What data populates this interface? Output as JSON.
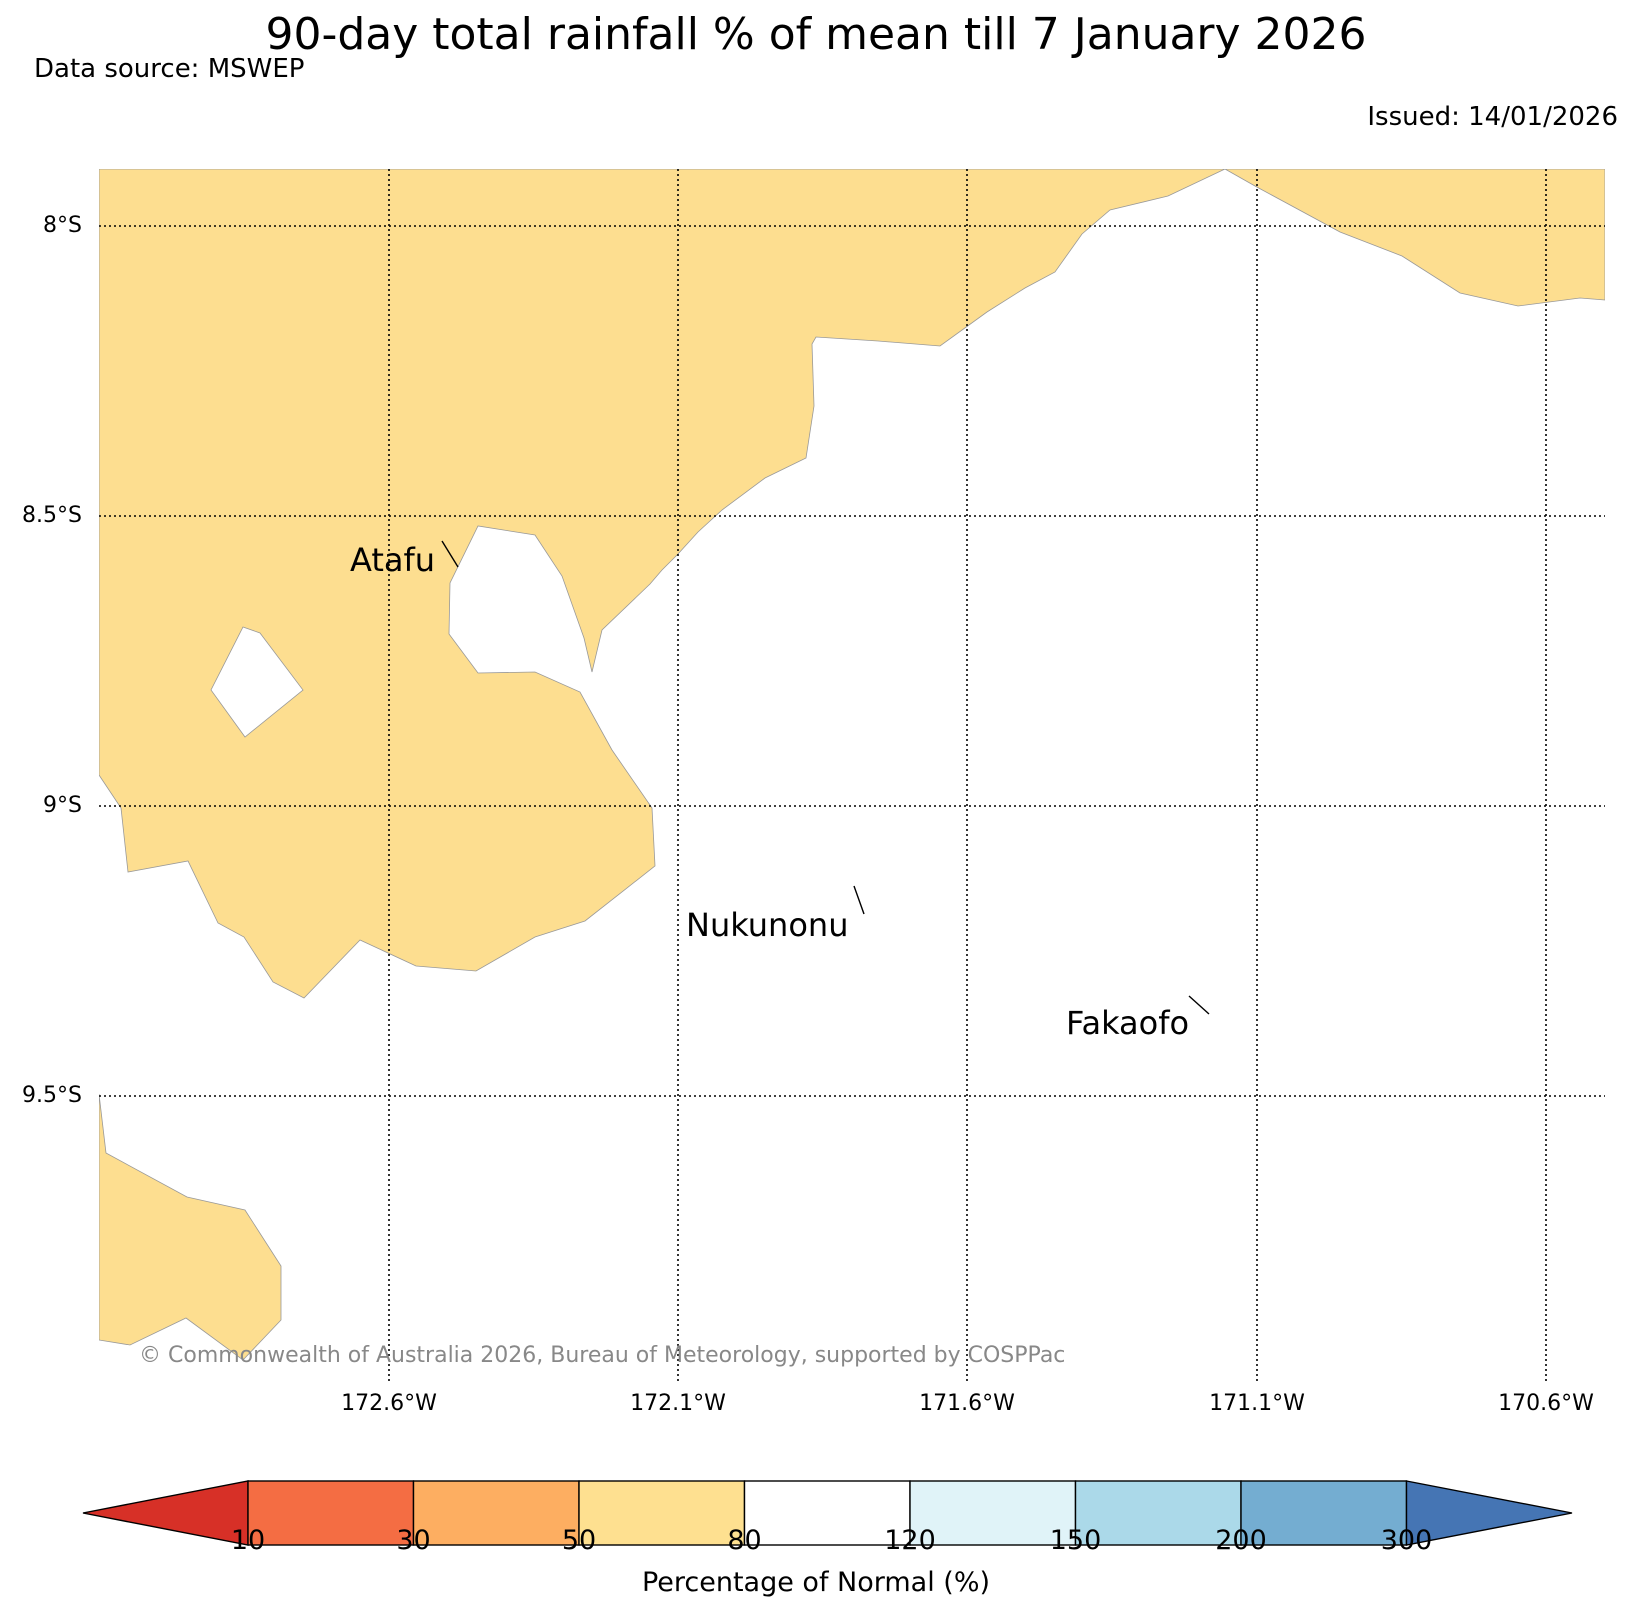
{
  "title": "90-day total rainfall % of mean till 7 January 2026",
  "data_source": "Data source: MSWEP",
  "issued": "Issued: 14/01/2026",
  "latitude_labels": [
    "8°S",
    "8.5°S",
    "9°S",
    "9.5°S"
  ],
  "longitude_labels": [
    "172.6°W",
    "172.1°W",
    "171.6°W",
    "171.1°W",
    "170.6°W"
  ],
  "places": [
    "Atafu",
    "Nukunonu",
    "Fakaofo"
  ],
  "copyright": "© Commonwealth of Australia 2026, Bureau of Meteorology, supported by COSPPac",
  "shaded_class_color": "#fdde90",
  "colorbar": {
    "title": "Percentage of Normal (%)",
    "ticks": [
      "10",
      "30",
      "50",
      "80",
      "120",
      "150",
      "200",
      "300"
    ],
    "colors": {
      "below_10": "#d73027",
      "10_30": "#f46d43",
      "30_50": "#fdae61",
      "50_80": "#fee090",
      "80_120": "#ffffff",
      "120_150": "#e0f3f8",
      "150_200": "#abd9e9",
      "200_300": "#74add1",
      "above_300": "#4575b4"
    }
  }
}
